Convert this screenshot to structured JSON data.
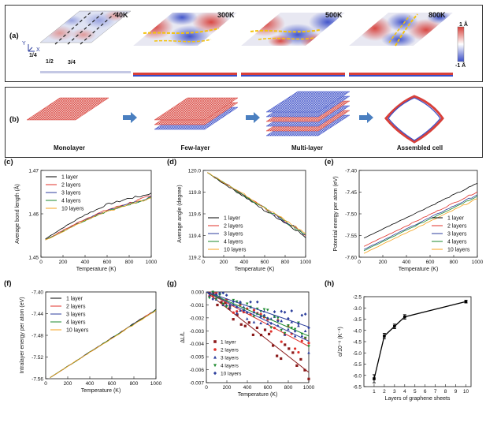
{
  "panel_a": {
    "label": "(a)",
    "temps": [
      "40K",
      "300K",
      "500K",
      "800K"
    ],
    "cuts": [
      "1/4",
      "1/2",
      "3/4"
    ],
    "axis_y": "Y",
    "axis_x": "X",
    "colorbar_top": "1 Å",
    "colorbar_bottom": "-1 Å"
  },
  "panel_b": {
    "label": "(b)",
    "captions": [
      "Monolayer",
      "Few-layer",
      "Multi-layer",
      "Assembled cell"
    ]
  },
  "colors": {
    "s1": "#000000",
    "s2": "#e0302a",
    "s3": "#2c3e9c",
    "s4": "#1c8a2e",
    "s10": "#f4a21c",
    "dark_red": "#8b1a1a",
    "surface_red": "#d8403a",
    "surface_blue": "#3a4ec8"
  },
  "chart_data": [
    {
      "id": "c",
      "label": "(c)",
      "type": "line",
      "xlabel": "Temperature (K)",
      "ylabel": "Average bond length (Å)",
      "xlim": [
        0,
        1000
      ],
      "ylim": [
        1.45,
        1.47
      ],
      "xticks": [
        0,
        200,
        400,
        600,
        800,
        1000
      ],
      "yticks": [
        1.45,
        1.46,
        1.47
      ],
      "ytick_labels": [
        "1.45",
        "1.46",
        "1.47"
      ],
      "legend": "top-left",
      "series": [
        {
          "name": "1 layer",
          "color": "#000000",
          "x": [
            40,
            100,
            200,
            300,
            400,
            500,
            600,
            700,
            800,
            900,
            1000
          ],
          "y": [
            1.4542,
            1.4552,
            1.4568,
            1.4583,
            1.4598,
            1.4609,
            1.4622,
            1.4628,
            1.4636,
            1.464,
            1.4648
          ]
        },
        {
          "name": "2 layers",
          "color": "#e0302a",
          "x": [
            40,
            100,
            200,
            300,
            400,
            500,
            600,
            700,
            800,
            900,
            1000
          ],
          "y": [
            1.454,
            1.4548,
            1.4562,
            1.4575,
            1.4588,
            1.4599,
            1.4609,
            1.4617,
            1.4625,
            1.4633,
            1.4641
          ]
        },
        {
          "name": "3 layers",
          "color": "#2c3e9c",
          "x": [
            40,
            100,
            200,
            300,
            400,
            500,
            600,
            700,
            800,
            900,
            1000
          ],
          "y": [
            1.454,
            1.4547,
            1.456,
            1.4573,
            1.4586,
            1.4597,
            1.4607,
            1.4615,
            1.4623,
            1.4631,
            1.464
          ]
        },
        {
          "name": "4 layers",
          "color": "#1c8a2e",
          "x": [
            40,
            100,
            200,
            300,
            400,
            500,
            600,
            700,
            800,
            900,
            1000
          ],
          "y": [
            1.454,
            1.4547,
            1.456,
            1.4573,
            1.4585,
            1.4596,
            1.4606,
            1.4614,
            1.4622,
            1.463,
            1.4638
          ]
        },
        {
          "name": "10 layers",
          "color": "#f4a21c",
          "x": [
            40,
            100,
            200,
            300,
            400,
            500,
            600,
            700,
            800,
            900,
            1000
          ],
          "y": [
            1.454,
            1.4546,
            1.4559,
            1.4572,
            1.4584,
            1.4595,
            1.4605,
            1.4613,
            1.4621,
            1.4629,
            1.4637
          ]
        }
      ]
    },
    {
      "id": "d",
      "label": "(d)",
      "type": "line",
      "xlabel": "Temperature (K)",
      "ylabel": "Average angle (degree)",
      "xlim": [
        0,
        1000
      ],
      "ylim": [
        119.2,
        120.0
      ],
      "xticks": [
        0,
        200,
        400,
        600,
        800,
        1000
      ],
      "yticks": [
        119.2,
        119.4,
        119.6,
        119.8,
        120.0
      ],
      "ytick_labels": [
        "119.2",
        "119.4",
        "119.6",
        "119.8",
        "120.0"
      ],
      "legend": "bottom-left",
      "series": [
        {
          "name": "1 layer",
          "color": "#000000",
          "x": [
            40,
            200,
            400,
            600,
            700,
            800,
            900,
            1000
          ],
          "y": [
            119.98,
            119.88,
            119.76,
            119.63,
            119.58,
            119.52,
            119.46,
            119.38
          ]
        },
        {
          "name": "2 layers",
          "color": "#e0302a",
          "x": [
            40,
            200,
            400,
            600,
            700,
            800,
            900,
            1000
          ],
          "y": [
            119.98,
            119.89,
            119.77,
            119.65,
            119.59,
            119.53,
            119.47,
            119.4
          ]
        },
        {
          "name": "3 layers",
          "color": "#2c3e9c",
          "x": [
            40,
            200,
            400,
            600,
            700,
            800,
            900,
            1000
          ],
          "y": [
            119.98,
            119.89,
            119.77,
            119.65,
            119.59,
            119.53,
            119.47,
            119.41
          ]
        },
        {
          "name": "4 layers",
          "color": "#1c8a2e",
          "x": [
            40,
            200,
            400,
            600,
            700,
            800,
            900,
            1000
          ],
          "y": [
            119.98,
            119.89,
            119.77,
            119.65,
            119.59,
            119.53,
            119.47,
            119.41
          ]
        },
        {
          "name": "10 layers",
          "color": "#f4a21c",
          "x": [
            40,
            200,
            400,
            600,
            700,
            800,
            900,
            1000
          ],
          "y": [
            119.98,
            119.89,
            119.78,
            119.66,
            119.6,
            119.54,
            119.48,
            119.42
          ]
        }
      ]
    },
    {
      "id": "e",
      "label": "(e)",
      "type": "line",
      "xlabel": "Temperature (K)",
      "ylabel": "Potential energy per atom (eV)",
      "xlim": [
        0,
        1000
      ],
      "ylim": [
        -7.6,
        -7.4
      ],
      "xticks": [
        0,
        200,
        400,
        600,
        800,
        1000
      ],
      "yticks": [
        -7.6,
        -7.55,
        -7.5,
        -7.45,
        -7.4
      ],
      "ytick_labels": [
        "-7.60",
        "-7.55",
        "-7.50",
        "-7.45",
        "-7.40"
      ],
      "legend": "bottom-right",
      "series": [
        {
          "name": "1 layer",
          "color": "#000000",
          "x": [
            40,
            1000
          ],
          "y": [
            -7.556,
            -7.43
          ]
        },
        {
          "name": "2 layers",
          "color": "#e0302a",
          "x": [
            40,
            1000
          ],
          "y": [
            -7.575,
            -7.449
          ]
        },
        {
          "name": "3 layers",
          "color": "#2c3e9c",
          "x": [
            40,
            1000
          ],
          "y": [
            -7.582,
            -7.456
          ]
        },
        {
          "name": "4 layers",
          "color": "#1c8a2e",
          "x": [
            40,
            1000
          ],
          "y": [
            -7.585,
            -7.459
          ]
        },
        {
          "name": "10 layers",
          "color": "#f4a21c",
          "x": [
            40,
            1000
          ],
          "y": [
            -7.591,
            -7.465
          ]
        }
      ]
    },
    {
      "id": "f",
      "label": "(f)",
      "type": "line",
      "xlabel": "Temperature (K)",
      "ylabel": "Intralayer energy per atom (eV)",
      "xlim": [
        0,
        1000
      ],
      "ylim": [
        -7.56,
        -7.4
      ],
      "xticks": [
        0,
        200,
        400,
        600,
        800,
        1000
      ],
      "yticks": [
        -7.56,
        -7.52,
        -7.48,
        -7.44,
        -7.4
      ],
      "ytick_labels": [
        "-7.56",
        "-7.52",
        "-7.48",
        "-7.44",
        "-7.40"
      ],
      "legend": "top-left",
      "series": [
        {
          "name": "1 layer",
          "color": "#000000",
          "x": [
            40,
            1000
          ],
          "y": [
            -7.558,
            -7.432
          ]
        },
        {
          "name": "2 layers",
          "color": "#e0302a",
          "x": [
            40,
            1000
          ],
          "y": [
            -7.558,
            -7.433
          ]
        },
        {
          "name": "3 layers",
          "color": "#2c3e9c",
          "x": [
            40,
            1000
          ],
          "y": [
            -7.558,
            -7.433
          ]
        },
        {
          "name": "4 layers",
          "color": "#1c8a2e",
          "x": [
            40,
            1000
          ],
          "y": [
            -7.558,
            -7.433
          ]
        },
        {
          "name": "10 layers",
          "color": "#f4a21c",
          "x": [
            40,
            1000
          ],
          "y": [
            -7.558,
            -7.434
          ]
        }
      ]
    },
    {
      "id": "g",
      "label": "(g)",
      "type": "scatter",
      "xlabel": "Temperature (K)",
      "ylabel": "ΔL/L",
      "xlim": [
        0,
        1000
      ],
      "ylim": [
        -0.007,
        0.0
      ],
      "xticks": [
        0,
        200,
        400,
        600,
        800,
        1000
      ],
      "yticks": [
        0.0,
        -0.001,
        -0.002,
        -0.003,
        -0.004,
        -0.005,
        -0.006,
        -0.007
      ],
      "ytick_labels": [
        "0.000",
        "-0.001",
        "-0.002",
        "-0.003",
        "-0.004",
        "-0.005",
        "-0.006",
        "-0.007"
      ],
      "legend": "bottom-left",
      "series": [
        {
          "name": "1 layer",
          "color": "#8b1a1a",
          "marker": "square",
          "slope": -6.2e-06,
          "points": 26
        },
        {
          "name": "2 layers",
          "color": "#e0302a",
          "marker": "circle",
          "slope": -4.2e-06,
          "points": 30
        },
        {
          "name": "3 layers",
          "color": "#2c3e9c",
          "marker": "triangle",
          "slope": -3.8e-06,
          "points": 30
        },
        {
          "name": "4 layers",
          "color": "#1c8a2e",
          "marker": "triangle-down",
          "slope": -3.4e-06,
          "points": 30
        },
        {
          "name": "10 layers",
          "color": "#2c3e9c",
          "marker": "diamond",
          "slope": -2.7e-06,
          "points": 30
        }
      ]
    },
    {
      "id": "h",
      "label": "(h)",
      "type": "line",
      "xlabel": "Layers of graphene sheets",
      "ylabel": "α/10⁻⁶ (K⁻¹)",
      "xlim": [
        0,
        10.5
      ],
      "ylim": [
        -6.5,
        -2.5
      ],
      "xticks": [
        1,
        2,
        3,
        4,
        5,
        6,
        7,
        8,
        9,
        10
      ],
      "yticks": [
        -6.5,
        -6.0,
        -5.5,
        -5.0,
        -4.5,
        -4.0,
        -3.5,
        -3.0,
        -2.5
      ],
      "ytick_labels": [
        "-6.5",
        "-6.0",
        "-5.5",
        "-5.0",
        "-4.5",
        "-4.0",
        "-3.5",
        "-3.0",
        "-2.5"
      ],
      "series": [
        {
          "x": [
            1,
            2,
            3,
            4,
            10
          ],
          "y": [
            -6.15,
            -4.25,
            -3.82,
            -3.4,
            -2.72
          ],
          "err": [
            0.18,
            0.12,
            0.1,
            0.1,
            0.06
          ],
          "color": "#000000"
        }
      ]
    }
  ]
}
